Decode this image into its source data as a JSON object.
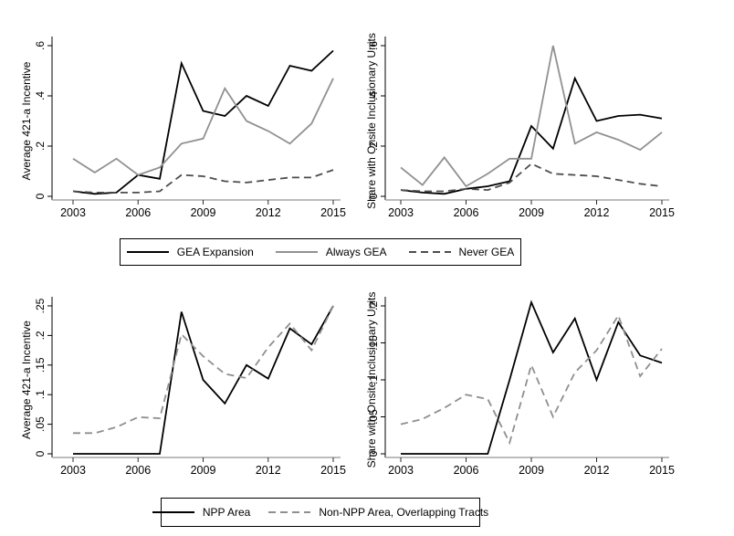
{
  "figure": {
    "background": "#ffffff",
    "colors": {
      "series_black": "#000000",
      "series_gray": "#919191",
      "series_dark_gray_dash": "#4d4d4d",
      "series_light_gray_dash": "#8f8f8f",
      "x_axis_line": "#a6a6a6",
      "text": "#000000"
    }
  },
  "legend1": {
    "items": [
      {
        "label": "GEA Expansion",
        "line": "solid-black"
      },
      {
        "label": "Always GEA",
        "line": "solid-gray"
      },
      {
        "label": "Never GEA",
        "line": "dashed-dark-gray"
      }
    ]
  },
  "legend2": {
    "items": [
      {
        "label": "NPP Area",
        "line": "solid-black"
      },
      {
        "label": "Non-NPP Area, Overlapping Tracts",
        "line": "dashed-gray"
      }
    ]
  },
  "chart_data": [
    {
      "type": "line",
      "position": "top-left",
      "title": "",
      "xlabel": "",
      "ylabel": "Average 421-a Incentive",
      "xlim": [
        2003,
        2015
      ],
      "ylim": [
        0,
        0.6
      ],
      "grid": false,
      "x": [
        2003,
        2004,
        2005,
        2006,
        2007,
        2008,
        2009,
        2010,
        2011,
        2012,
        2013,
        2014,
        2015
      ],
      "xticks": [
        2003,
        2006,
        2009,
        2012,
        2015
      ],
      "xtick_labels": [
        "2003",
        "2006",
        "2009",
        "2012",
        "2015"
      ],
      "yticks": [
        0,
        0.2,
        0.4,
        0.6
      ],
      "ytick_labels": [
        "0",
        ".2",
        ".4",
        ".6"
      ],
      "series": [
        {
          "name": "GEA Expansion",
          "color": "#000000",
          "dash": false,
          "values": [
            0.02,
            0.01,
            0.015,
            0.085,
            0.07,
            0.53,
            0.34,
            0.32,
            0.4,
            0.36,
            0.52,
            0.5,
            0.58
          ]
        },
        {
          "name": "Always GEA",
          "color": "#919191",
          "dash": false,
          "values": [
            0.15,
            0.095,
            0.15,
            0.085,
            0.115,
            0.21,
            0.23,
            0.43,
            0.3,
            0.26,
            0.21,
            0.29,
            0.47
          ]
        },
        {
          "name": "Never GEA",
          "color": "#4d4d4d",
          "dash": true,
          "values": [
            0.02,
            0.015,
            0.015,
            0.015,
            0.02,
            0.085,
            0.08,
            0.06,
            0.055,
            0.065,
            0.075,
            0.075,
            0.105
          ]
        }
      ]
    },
    {
      "type": "line",
      "position": "top-right",
      "title": "",
      "xlabel": "",
      "ylabel": "Share with Onsite Inclusionary Units",
      "xlim": [
        2003,
        2015
      ],
      "ylim": [
        0,
        0.6
      ],
      "grid": false,
      "x": [
        2003,
        2004,
        2005,
        2006,
        2007,
        2008,
        2009,
        2010,
        2011,
        2012,
        2013,
        2014,
        2015
      ],
      "xticks": [
        2003,
        2006,
        2009,
        2012,
        2015
      ],
      "xtick_labels": [
        "2003",
        "2006",
        "2009",
        "2012",
        "2015"
      ],
      "yticks": [
        0,
        0.2,
        0.4,
        0.6
      ],
      "ytick_labels": [
        "0",
        ".2",
        ".4",
        ".6"
      ],
      "series": [
        {
          "name": "GEA Expansion",
          "color": "#000000",
          "dash": false,
          "values": [
            0.025,
            0.015,
            0.01,
            0.03,
            0.04,
            0.06,
            0.28,
            0.19,
            0.47,
            0.3,
            0.32,
            0.325,
            0.31
          ]
        },
        {
          "name": "Always GEA",
          "color": "#919191",
          "dash": false,
          "values": [
            0.115,
            0.045,
            0.155,
            0.04,
            0.09,
            0.15,
            0.15,
            0.6,
            0.21,
            0.255,
            0.225,
            0.185,
            0.255
          ]
        },
        {
          "name": "Never GEA",
          "color": "#4d4d4d",
          "dash": true,
          "values": [
            0.025,
            0.02,
            0.02,
            0.03,
            0.025,
            0.055,
            0.13,
            0.09,
            0.085,
            0.08,
            0.065,
            0.05,
            0.04
          ]
        }
      ]
    },
    {
      "type": "line",
      "position": "bottom-left",
      "title": "",
      "xlabel": "",
      "ylabel": "Average 421-a Incentive",
      "xlim": [
        2003,
        2015
      ],
      "ylim": [
        0,
        0.25
      ],
      "grid": false,
      "x": [
        2003,
        2004,
        2005,
        2006,
        2007,
        2008,
        2009,
        2010,
        2011,
        2012,
        2013,
        2014,
        2015
      ],
      "xticks": [
        2003,
        2006,
        2009,
        2012,
        2015
      ],
      "xtick_labels": [
        "2003",
        "2006",
        "2009",
        "2012",
        "2015"
      ],
      "yticks": [
        0,
        0.05,
        0.1,
        0.15,
        0.2,
        0.25
      ],
      "ytick_labels": [
        "0",
        ".05",
        ".1",
        ".15",
        ".2",
        ".25"
      ],
      "series": [
        {
          "name": "NPP Area",
          "color": "#000000",
          "dash": false,
          "values": [
            0,
            0,
            0,
            0,
            0,
            0.24,
            0.125,
            0.085,
            0.15,
            0.127,
            0.212,
            0.185,
            0.25
          ]
        },
        {
          "name": "Non-NPP Area, Overlapping Tracts",
          "color": "#8f8f8f",
          "dash": true,
          "values": [
            0.035,
            0.035,
            0.045,
            0.062,
            0.06,
            0.202,
            0.165,
            0.135,
            0.128,
            0.18,
            0.22,
            0.175,
            0.25
          ]
        }
      ]
    },
    {
      "type": "line",
      "position": "bottom-right",
      "title": "",
      "xlabel": "",
      "ylabel": "Share with Onsite Inclusionary Units",
      "xlim": [
        2003,
        2015
      ],
      "ylim": [
        0,
        0.2
      ],
      "grid": false,
      "x": [
        2003,
        2004,
        2005,
        2006,
        2007,
        2008,
        2009,
        2010,
        2011,
        2012,
        2013,
        2014,
        2015
      ],
      "xticks": [
        2003,
        2006,
        2009,
        2012,
        2015
      ],
      "xtick_labels": [
        "2003",
        "2006",
        "2009",
        "2012",
        "2015"
      ],
      "yticks": [
        0,
        0.05,
        0.1,
        0.15,
        0.2
      ],
      "ytick_labels": [
        "0",
        ".05",
        ".1",
        ".15",
        ".2"
      ],
      "series": [
        {
          "name": "NPP Area",
          "color": "#000000",
          "dash": false,
          "values": [
            0,
            0,
            0,
            0,
            0,
            0.1,
            0.205,
            0.137,
            0.183,
            0.1,
            0.178,
            0.133,
            0.123
          ]
        },
        {
          "name": "Non-NPP Area, Overlapping Tracts",
          "color": "#8f8f8f",
          "dash": true,
          "values": [
            0.04,
            0.047,
            0.062,
            0.08,
            0.074,
            0.015,
            0.12,
            0.05,
            0.11,
            0.14,
            0.187,
            0.105,
            0.142
          ]
        }
      ]
    }
  ]
}
